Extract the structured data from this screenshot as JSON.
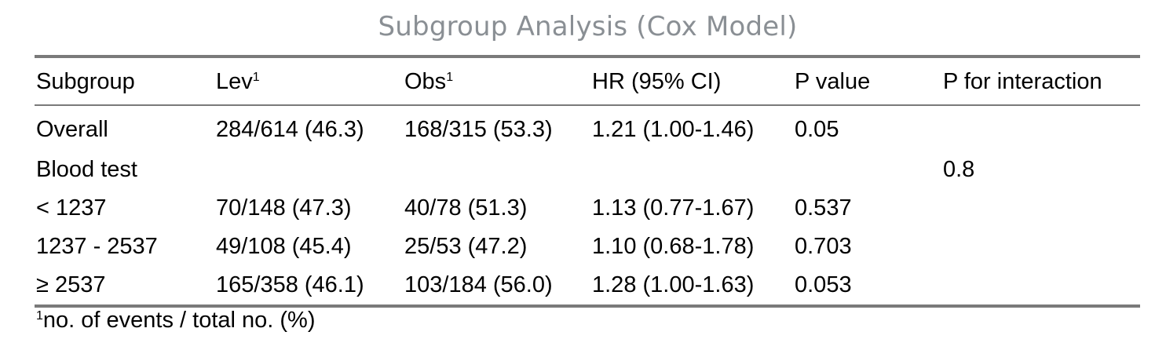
{
  "title": "Subgroup Analysis (Cox Model)",
  "columns": [
    {
      "label": "Subgroup",
      "sup": ""
    },
    {
      "label": "Lev",
      "sup": "1"
    },
    {
      "label": "Obs",
      "sup": "1"
    },
    {
      "label": "HR (95% CI)",
      "sup": ""
    },
    {
      "label": "P value",
      "sup": ""
    },
    {
      "label": "P for interaction",
      "sup": ""
    }
  ],
  "rows": [
    [
      "Overall",
      "284/614 (46.3)",
      "168/315 (53.3)",
      "1.21 (1.00-1.46)",
      "0.05",
      ""
    ],
    [
      "Blood test",
      "",
      "",
      "",
      "",
      "0.8"
    ],
    [
      "< 1237",
      "70/148 (47.3)",
      "40/78 (51.3)",
      "1.13 (0.77-1.67)",
      "0.537",
      ""
    ],
    [
      "1237 - 2537",
      "49/108 (45.4)",
      "25/53 (47.2)",
      "1.10 (0.68-1.78)",
      "0.703",
      ""
    ],
    [
      "≥ 2537",
      "165/358 (46.1)",
      "103/184 (56.0)",
      "1.28 (1.00-1.63)",
      "0.053",
      ""
    ]
  ],
  "footnote": {
    "marker": "1",
    "text": "no. of events / total no. (%)"
  }
}
